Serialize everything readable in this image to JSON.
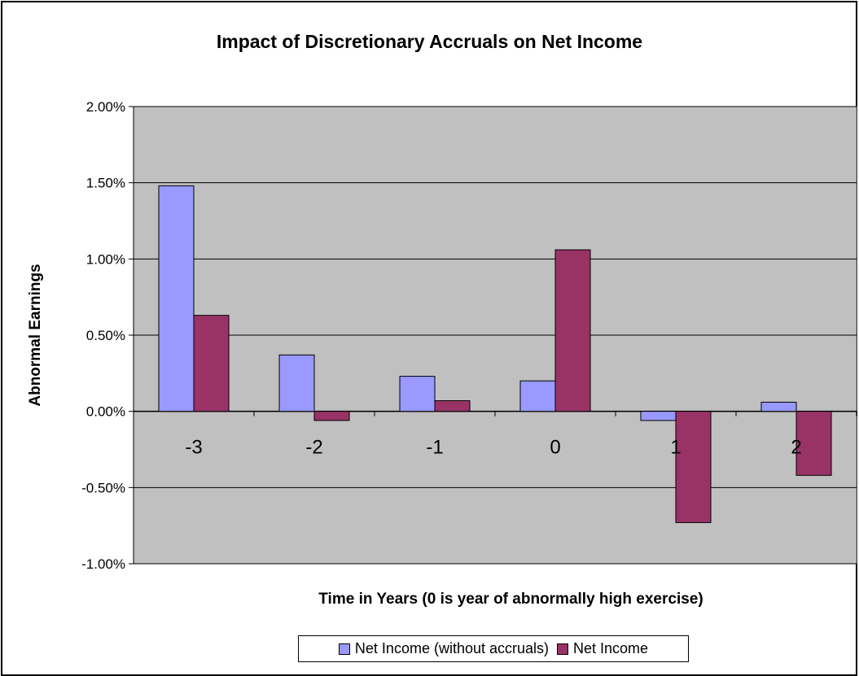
{
  "chart_data": {
    "type": "bar",
    "title": "Impact of Discretionary Accruals on Net Income",
    "xlabel": "Time in Years (0 is year of abnormally high exercise)",
    "ylabel": "Abnormal Earnings",
    "categories": [
      "-3",
      "-2",
      "-1",
      "0",
      "1",
      "2"
    ],
    "series": [
      {
        "name": "Net Income (without accruals)",
        "color": "#9999ff",
        "values": [
          0.0148,
          0.0037,
          0.0023,
          0.002,
          -0.0006,
          0.0006
        ]
      },
      {
        "name": "Net Income",
        "color": "#993366",
        "values": [
          0.0063,
          -0.0006,
          0.0007,
          0.0106,
          -0.0073,
          -0.0042
        ]
      }
    ],
    "ylim": [
      -0.01,
      0.02
    ],
    "yticks": [
      -0.01,
      -0.005,
      0.0,
      0.005,
      0.01,
      0.015,
      0.02
    ],
    "ytick_labels": [
      "-1.00%",
      "-0.50%",
      "0.00%",
      "0.50%",
      "1.00%",
      "1.50%",
      "2.00%"
    ],
    "grid": true,
    "plot_background": "#c0c0c0",
    "legend_position": "bottom"
  }
}
